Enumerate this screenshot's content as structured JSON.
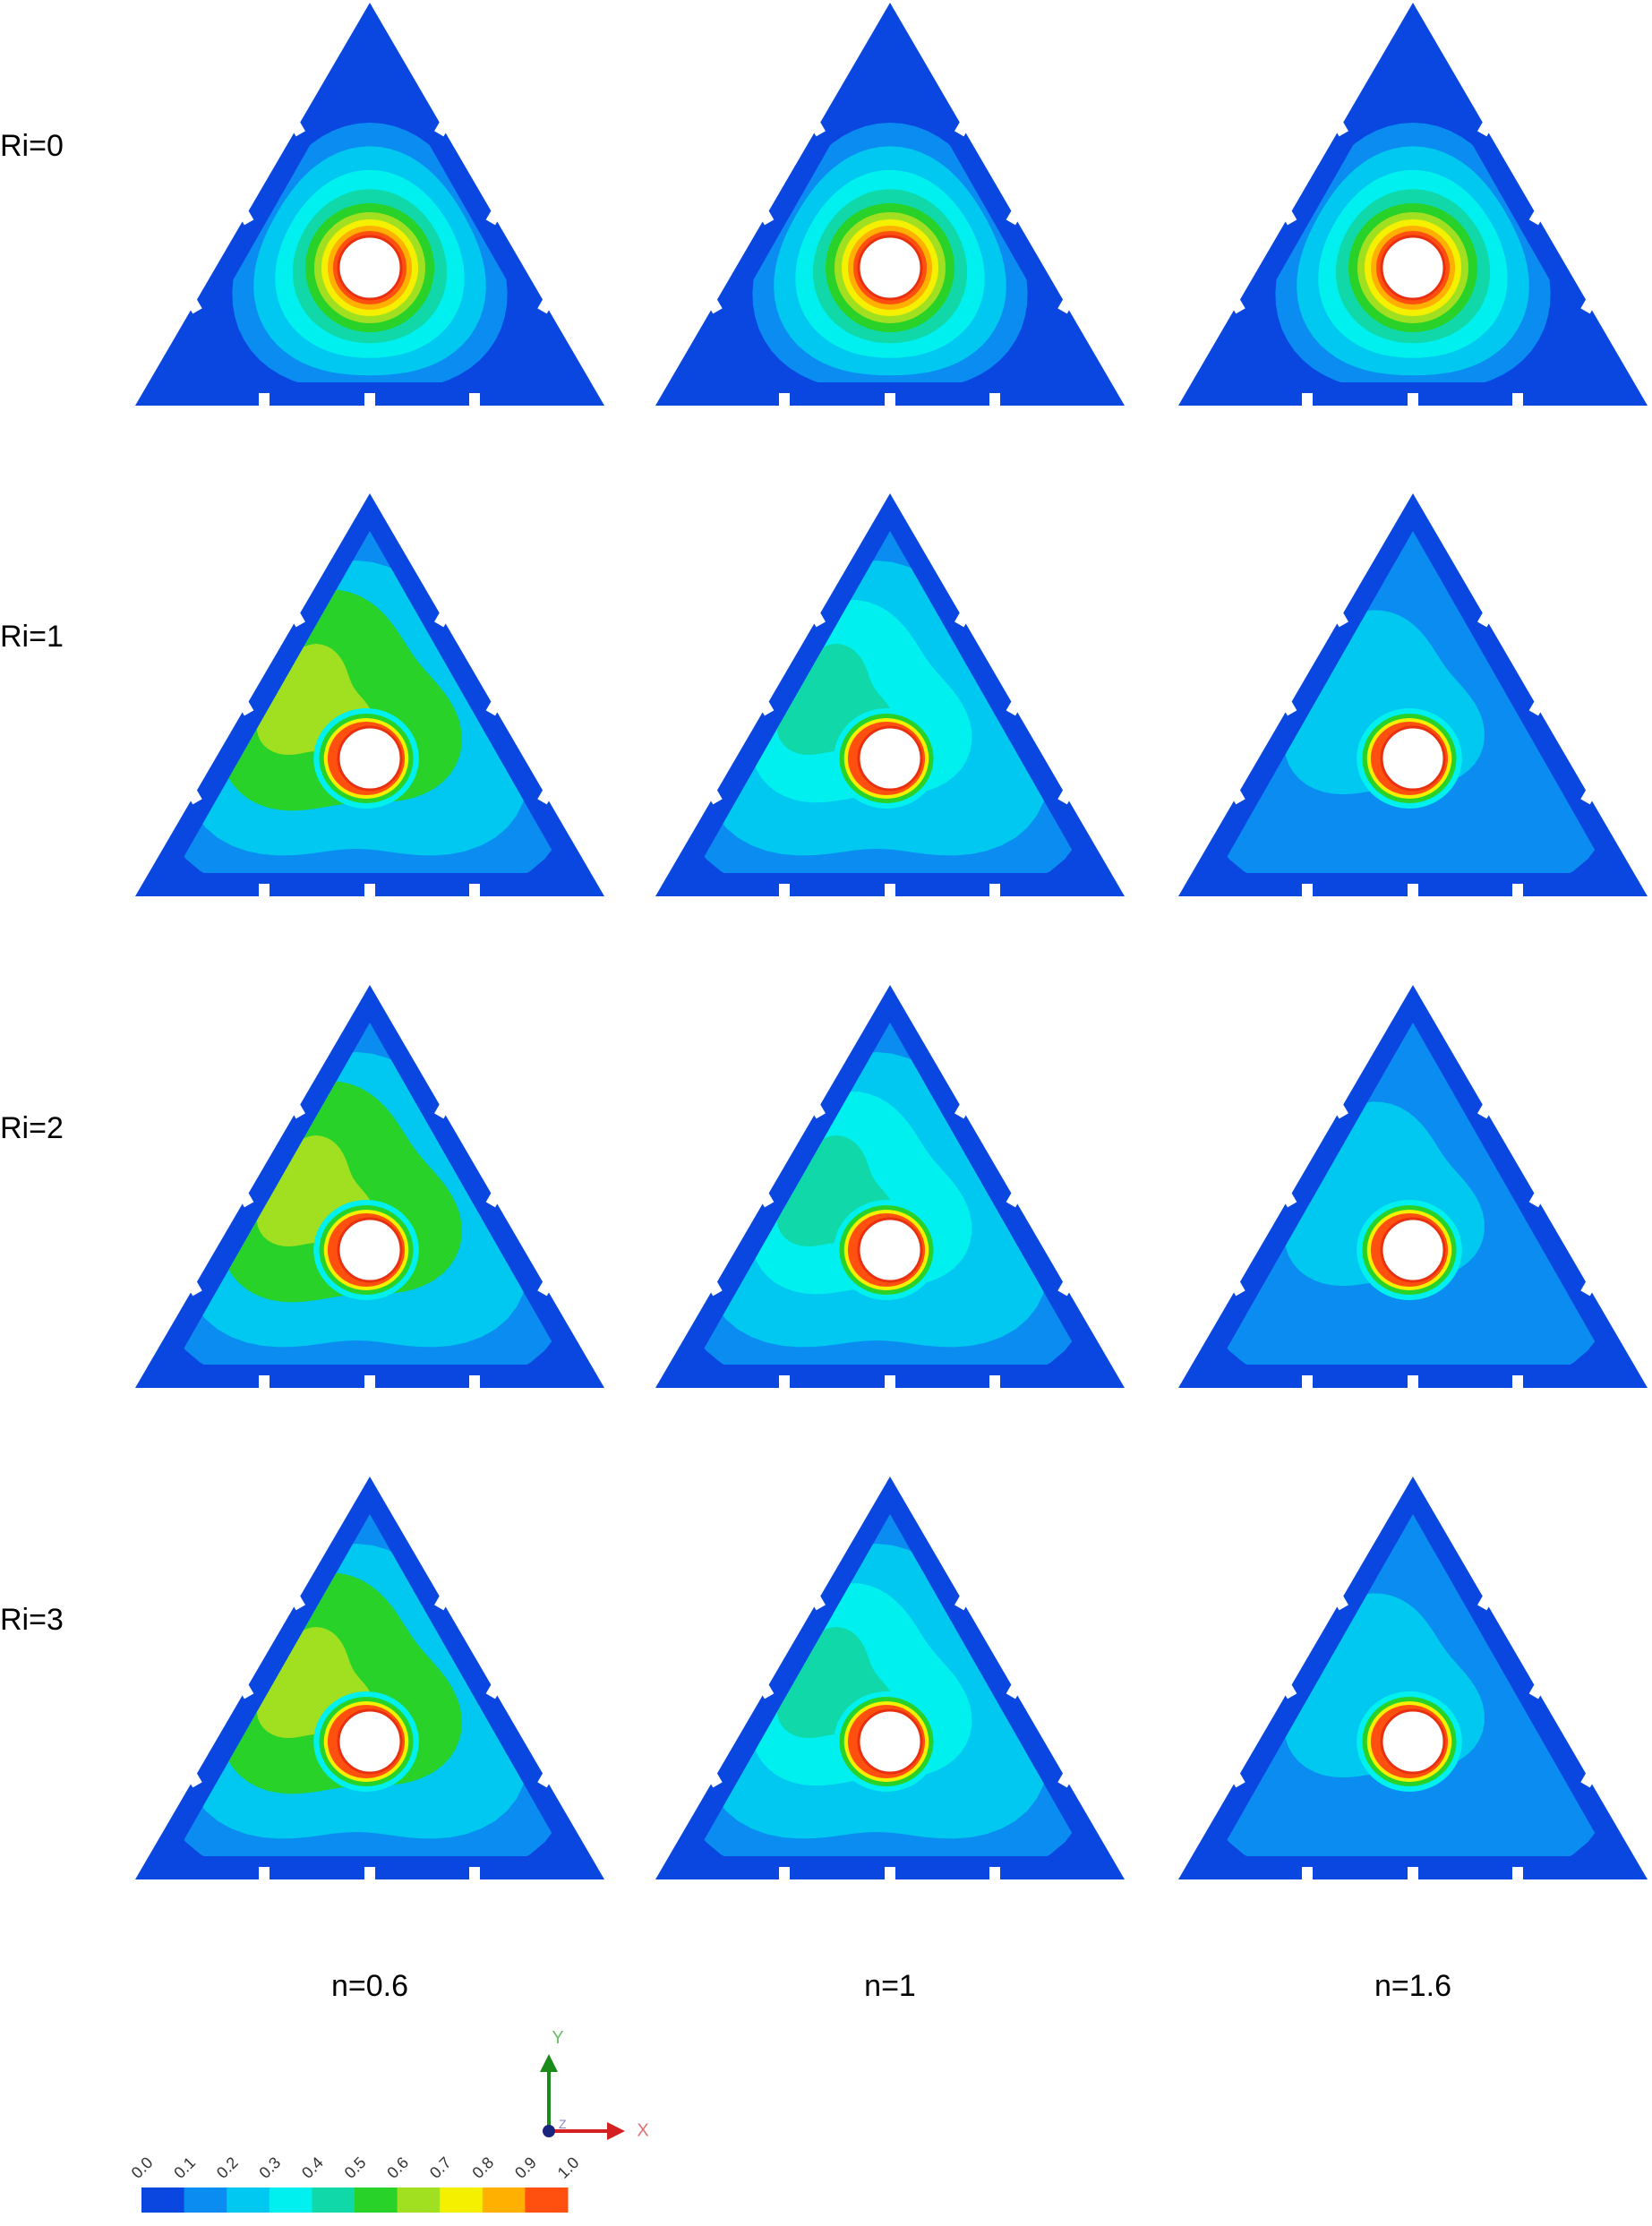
{
  "row_labels": [
    "Ri=0",
    "Ri=1",
    "Ri=2",
    "Ri=3"
  ],
  "column_labels": [
    "n=0.6",
    "n=1",
    "n=1.6"
  ],
  "colorbar": {
    "ticks": [
      "0.0",
      "0.1",
      "0.2",
      "0.3",
      "0.4",
      "0.5",
      "0.6",
      "0.7",
      "0.8",
      "0.9",
      "1.0"
    ]
  },
  "axes": {
    "y": "Y",
    "z": "Z",
    "x": "X"
  }
}
